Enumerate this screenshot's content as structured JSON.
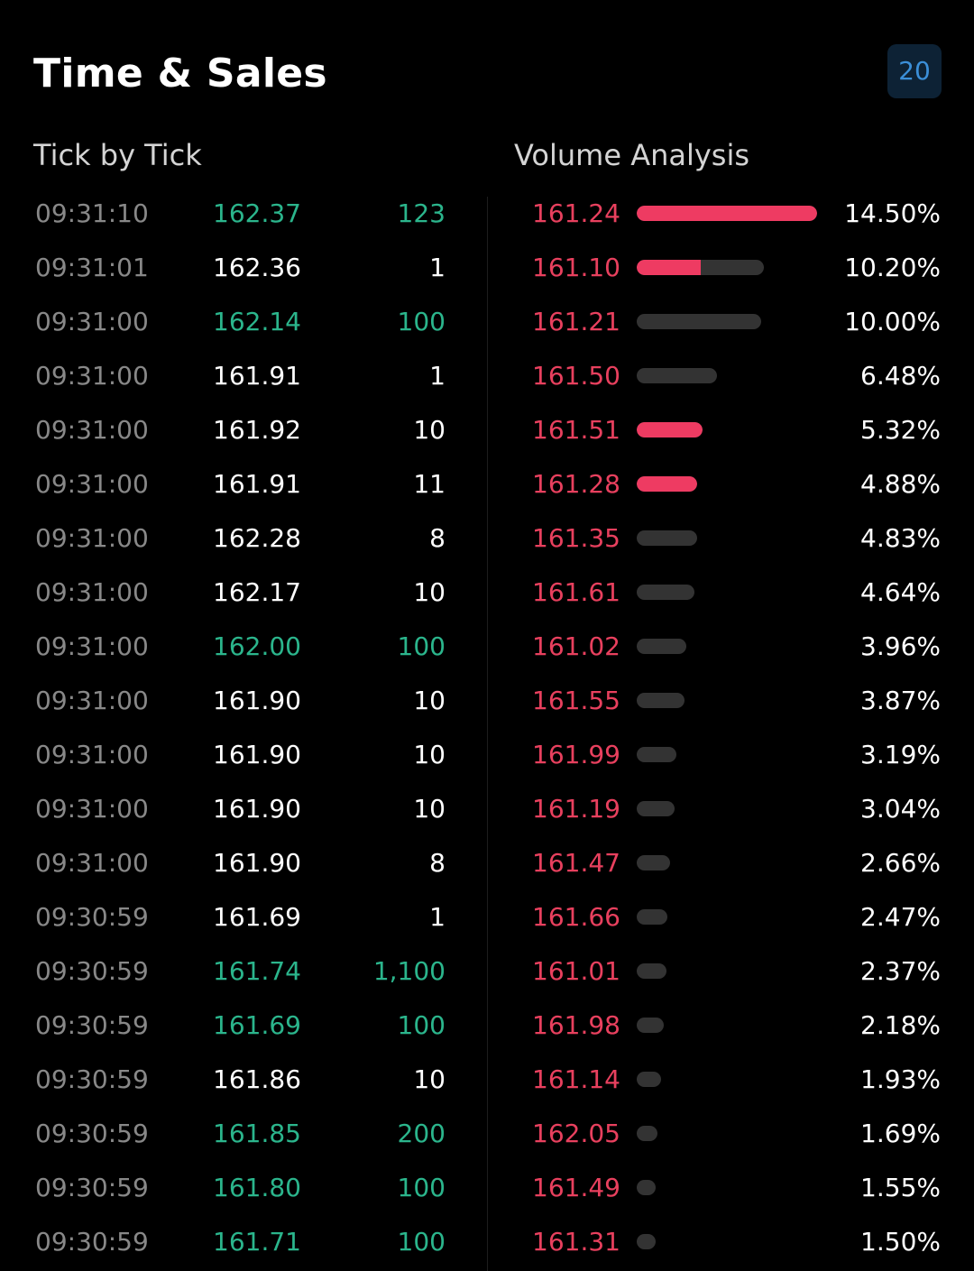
{
  "header": {
    "title": "Time & Sales",
    "count": "20"
  },
  "tick_by_tick": {
    "title": "Tick by Tick",
    "rows": [
      {
        "time": "09:31:10",
        "price": "162.37",
        "volume": "123",
        "direction": "up"
      },
      {
        "time": "09:31:01",
        "price": "162.36",
        "volume": "1",
        "direction": "neutral"
      },
      {
        "time": "09:31:00",
        "price": "162.14",
        "volume": "100",
        "direction": "up"
      },
      {
        "time": "09:31:00",
        "price": "161.91",
        "volume": "1",
        "direction": "neutral"
      },
      {
        "time": "09:31:00",
        "price": "161.92",
        "volume": "10",
        "direction": "neutral"
      },
      {
        "time": "09:31:00",
        "price": "161.91",
        "volume": "11",
        "direction": "neutral"
      },
      {
        "time": "09:31:00",
        "price": "162.28",
        "volume": "8",
        "direction": "neutral"
      },
      {
        "time": "09:31:00",
        "price": "162.17",
        "volume": "10",
        "direction": "neutral"
      },
      {
        "time": "09:31:00",
        "price": "162.00",
        "volume": "100",
        "direction": "up"
      },
      {
        "time": "09:31:00",
        "price": "161.90",
        "volume": "10",
        "direction": "neutral"
      },
      {
        "time": "09:31:00",
        "price": "161.90",
        "volume": "10",
        "direction": "neutral"
      },
      {
        "time": "09:31:00",
        "price": "161.90",
        "volume": "10",
        "direction": "neutral"
      },
      {
        "time": "09:31:00",
        "price": "161.90",
        "volume": "8",
        "direction": "neutral"
      },
      {
        "time": "09:30:59",
        "price": "161.69",
        "volume": "1",
        "direction": "neutral"
      },
      {
        "time": "09:30:59",
        "price": "161.74",
        "volume": "1,100",
        "direction": "up"
      },
      {
        "time": "09:30:59",
        "price": "161.69",
        "volume": "100",
        "direction": "up"
      },
      {
        "time": "09:30:59",
        "price": "161.86",
        "volume": "10",
        "direction": "neutral"
      },
      {
        "time": "09:30:59",
        "price": "161.85",
        "volume": "200",
        "direction": "up"
      },
      {
        "time": "09:30:59",
        "price": "161.80",
        "volume": "100",
        "direction": "up"
      },
      {
        "time": "09:30:59",
        "price": "161.71",
        "volume": "100",
        "direction": "up"
      }
    ]
  },
  "volume_analysis": {
    "title": "Volume Analysis",
    "rows": [
      {
        "price": "161.24",
        "percent": "14.50%",
        "share": 14.5,
        "buy_fraction": 1.0
      },
      {
        "price": "161.10",
        "percent": "10.20%",
        "share": 10.2,
        "buy_fraction": 0.5
      },
      {
        "price": "161.21",
        "percent": "10.00%",
        "share": 10.0,
        "buy_fraction": 0.0
      },
      {
        "price": "161.50",
        "percent": "6.48%",
        "share": 6.48,
        "buy_fraction": 0.0
      },
      {
        "price": "161.51",
        "percent": "5.32%",
        "share": 5.32,
        "buy_fraction": 1.0
      },
      {
        "price": "161.28",
        "percent": "4.88%",
        "share": 4.88,
        "buy_fraction": 1.0
      },
      {
        "price": "161.35",
        "percent": "4.83%",
        "share": 4.83,
        "buy_fraction": 0.0
      },
      {
        "price": "161.61",
        "percent": "4.64%",
        "share": 4.64,
        "buy_fraction": 0.0
      },
      {
        "price": "161.02",
        "percent": "3.96%",
        "share": 3.96,
        "buy_fraction": 0.0
      },
      {
        "price": "161.55",
        "percent": "3.87%",
        "share": 3.87,
        "buy_fraction": 0.0
      },
      {
        "price": "161.99",
        "percent": "3.19%",
        "share": 3.19,
        "buy_fraction": 0.0
      },
      {
        "price": "161.19",
        "percent": "3.04%",
        "share": 3.04,
        "buy_fraction": 0.0
      },
      {
        "price": "161.47",
        "percent": "2.66%",
        "share": 2.66,
        "buy_fraction": 0.0
      },
      {
        "price": "161.66",
        "percent": "2.47%",
        "share": 2.47,
        "buy_fraction": 0.0
      },
      {
        "price": "161.01",
        "percent": "2.37%",
        "share": 2.37,
        "buy_fraction": 0.0
      },
      {
        "price": "161.98",
        "percent": "2.18%",
        "share": 2.18,
        "buy_fraction": 0.0
      },
      {
        "price": "161.14",
        "percent": "1.93%",
        "share": 1.93,
        "buy_fraction": 0.0
      },
      {
        "price": "162.05",
        "percent": "1.69%",
        "share": 1.69,
        "buy_fraction": 0.0
      },
      {
        "price": "161.49",
        "percent": "1.55%",
        "share": 1.55,
        "buy_fraction": 0.0
      },
      {
        "price": "161.31",
        "percent": "1.50%",
        "share": 1.5,
        "buy_fraction": 0.0
      }
    ]
  },
  "colors": {
    "background": "#000000",
    "uptick_green": "#2bb58c",
    "sell_red": "#e8405e",
    "bar_fill_pink": "#ee3b62",
    "bar_track_gray": "#333333",
    "muted_text": "#888888",
    "badge_bg": "#0d2235",
    "badge_text": "#3b8fd8"
  }
}
